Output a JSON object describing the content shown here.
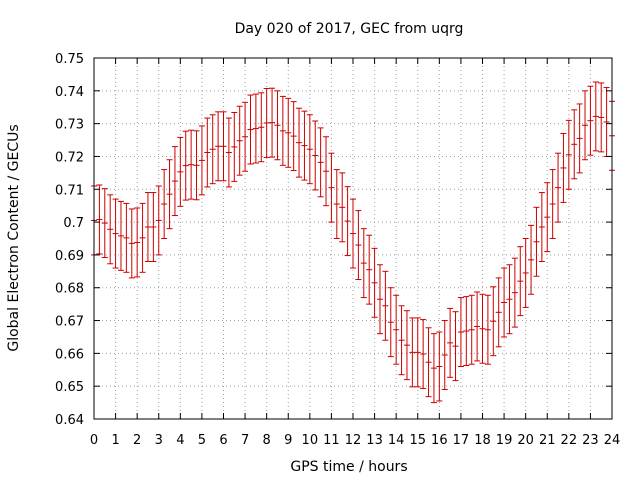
{
  "chart_data": {
    "type": "scatter",
    "title": "Day 020 of 2017, GEC from uqrg",
    "xlabel": "GPS time / hours",
    "ylabel": "Global Electron Content / GECUs",
    "xlim": [
      0,
      24
    ],
    "ylim": [
      0.64,
      0.75
    ],
    "xticks": [
      0,
      1,
      2,
      3,
      4,
      5,
      6,
      7,
      8,
      9,
      10,
      11,
      12,
      13,
      14,
      15,
      16,
      17,
      18,
      19,
      20,
      21,
      22,
      23,
      24
    ],
    "yticks": [
      0.64,
      0.65,
      0.66,
      0.67,
      0.68,
      0.69,
      0.7,
      0.71,
      0.72,
      0.73,
      0.74,
      0.75
    ],
    "xtick_labels": [
      "0",
      "1",
      "2",
      "3",
      "4",
      "5",
      "6",
      "7",
      "8",
      "9",
      "10",
      "11",
      "12",
      "13",
      "14",
      "15",
      "16",
      "17",
      "18",
      "19",
      "20",
      "21",
      "22",
      "23",
      "24"
    ],
    "ytick_labels": [
      "0.64",
      "0.65",
      "0.66",
      "0.67",
      "0.68",
      "0.69",
      "0.7",
      "0.71",
      "0.72",
      "0.73",
      "0.74",
      "0.75"
    ],
    "grid": true,
    "series": [
      {
        "color": "#cc0000",
        "error": 0.0105,
        "x": [
          0,
          0.25,
          0.5,
          0.75,
          1,
          1.25,
          1.5,
          1.75,
          2,
          2.25,
          2.5,
          2.75,
          3,
          3.25,
          3.5,
          3.75,
          4,
          4.25,
          4.5,
          4.75,
          5,
          5.25,
          5.5,
          5.75,
          6,
          6.25,
          6.5,
          6.75,
          7,
          7.25,
          7.5,
          7.75,
          8,
          8.25,
          8.5,
          8.75,
          9,
          9.25,
          9.5,
          9.75,
          10,
          10.25,
          10.5,
          10.75,
          11,
          11.25,
          11.5,
          11.75,
          12,
          12.25,
          12.5,
          12.75,
          13,
          13.25,
          13.5,
          13.75,
          14,
          14.25,
          14.5,
          14.75,
          15,
          15.25,
          15.5,
          15.75,
          16,
          16.25,
          16.5,
          16.75,
          17,
          17.25,
          17.5,
          17.75,
          18,
          18.25,
          18.5,
          18.75,
          19,
          19.25,
          19.5,
          19.75,
          20,
          20.25,
          20.5,
          20.75,
          21,
          21.25,
          21.5,
          21.75,
          22,
          22.25,
          22.5,
          22.75,
          23,
          23.25,
          23.5,
          23.75,
          24
        ],
        "y": [
          0.7005,
          0.7008,
          0.6997,
          0.6978,
          0.6965,
          0.6958,
          0.6952,
          0.6935,
          0.6938,
          0.6952,
          0.6985,
          0.6985,
          0.7005,
          0.7055,
          0.7085,
          0.7125,
          0.7153,
          0.7172,
          0.7175,
          0.7173,
          0.7188,
          0.7212,
          0.7222,
          0.7231,
          0.7231,
          0.7212,
          0.7229,
          0.7248,
          0.726,
          0.7282,
          0.7285,
          0.7289,
          0.7302,
          0.7303,
          0.7295,
          0.7278,
          0.7272,
          0.7262,
          0.7242,
          0.7233,
          0.7222,
          0.7203,
          0.7182,
          0.7155,
          0.7105,
          0.7055,
          0.7045,
          0.7003,
          0.6965,
          0.693,
          0.6875,
          0.6855,
          0.6815,
          0.6765,
          0.6745,
          0.6695,
          0.6672,
          0.664,
          0.6625,
          0.6603,
          0.6603,
          0.6598,
          0.6573,
          0.6555,
          0.656,
          0.6595,
          0.6632,
          0.6622,
          0.6665,
          0.6668,
          0.6672,
          0.6682,
          0.6675,
          0.6672,
          0.6698,
          0.6725,
          0.6755,
          0.6765,
          0.6785,
          0.682,
          0.6845,
          0.6885,
          0.694,
          0.6985,
          0.7015,
          0.7055,
          0.7105,
          0.7165,
          0.7205,
          0.7237,
          0.7255,
          0.7295,
          0.7309,
          0.7322,
          0.7319,
          0.7305,
          0.7263
        ]
      }
    ]
  }
}
